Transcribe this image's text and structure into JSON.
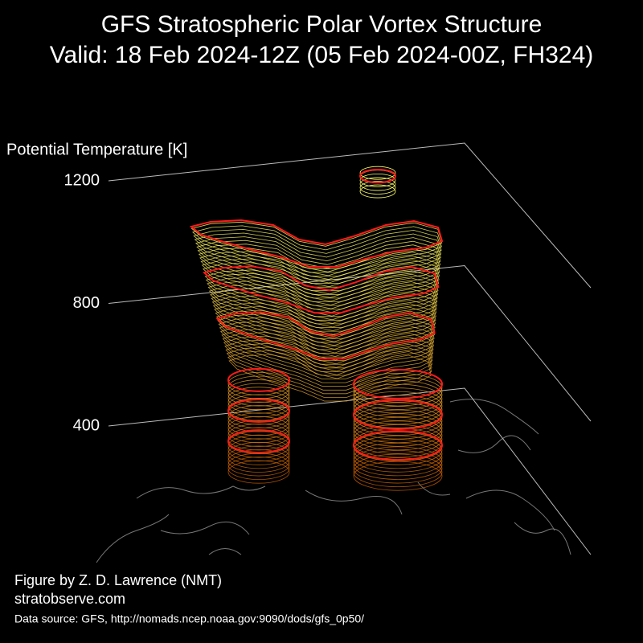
{
  "chart_data": {
    "type": "vortex3d",
    "title": "GFS Stratospheric Polar Vortex Structure",
    "subtitle": "Valid: 18 Feb 2024-12Z  (05 Feb 2024-00Z, FH324)",
    "zlabel": "Potential Temperature [K]",
    "zlim": [
      400,
      1200
    ],
    "zticks": [
      400,
      800,
      1200
    ],
    "levels": [
      350,
      450,
      550,
      700,
      850,
      1000,
      1200
    ],
    "level_color": "#ff1a1a",
    "fill_colors": [
      "#c85a00",
      "#ffff66"
    ],
    "annotations": [
      "Figure by Z. D. Lawrence (NMT)",
      "stratobserve.com",
      "Data source: GFS, http://nomads.ncep.noaa.gov:9090/dods/gfs_0p50/"
    ]
  }
}
